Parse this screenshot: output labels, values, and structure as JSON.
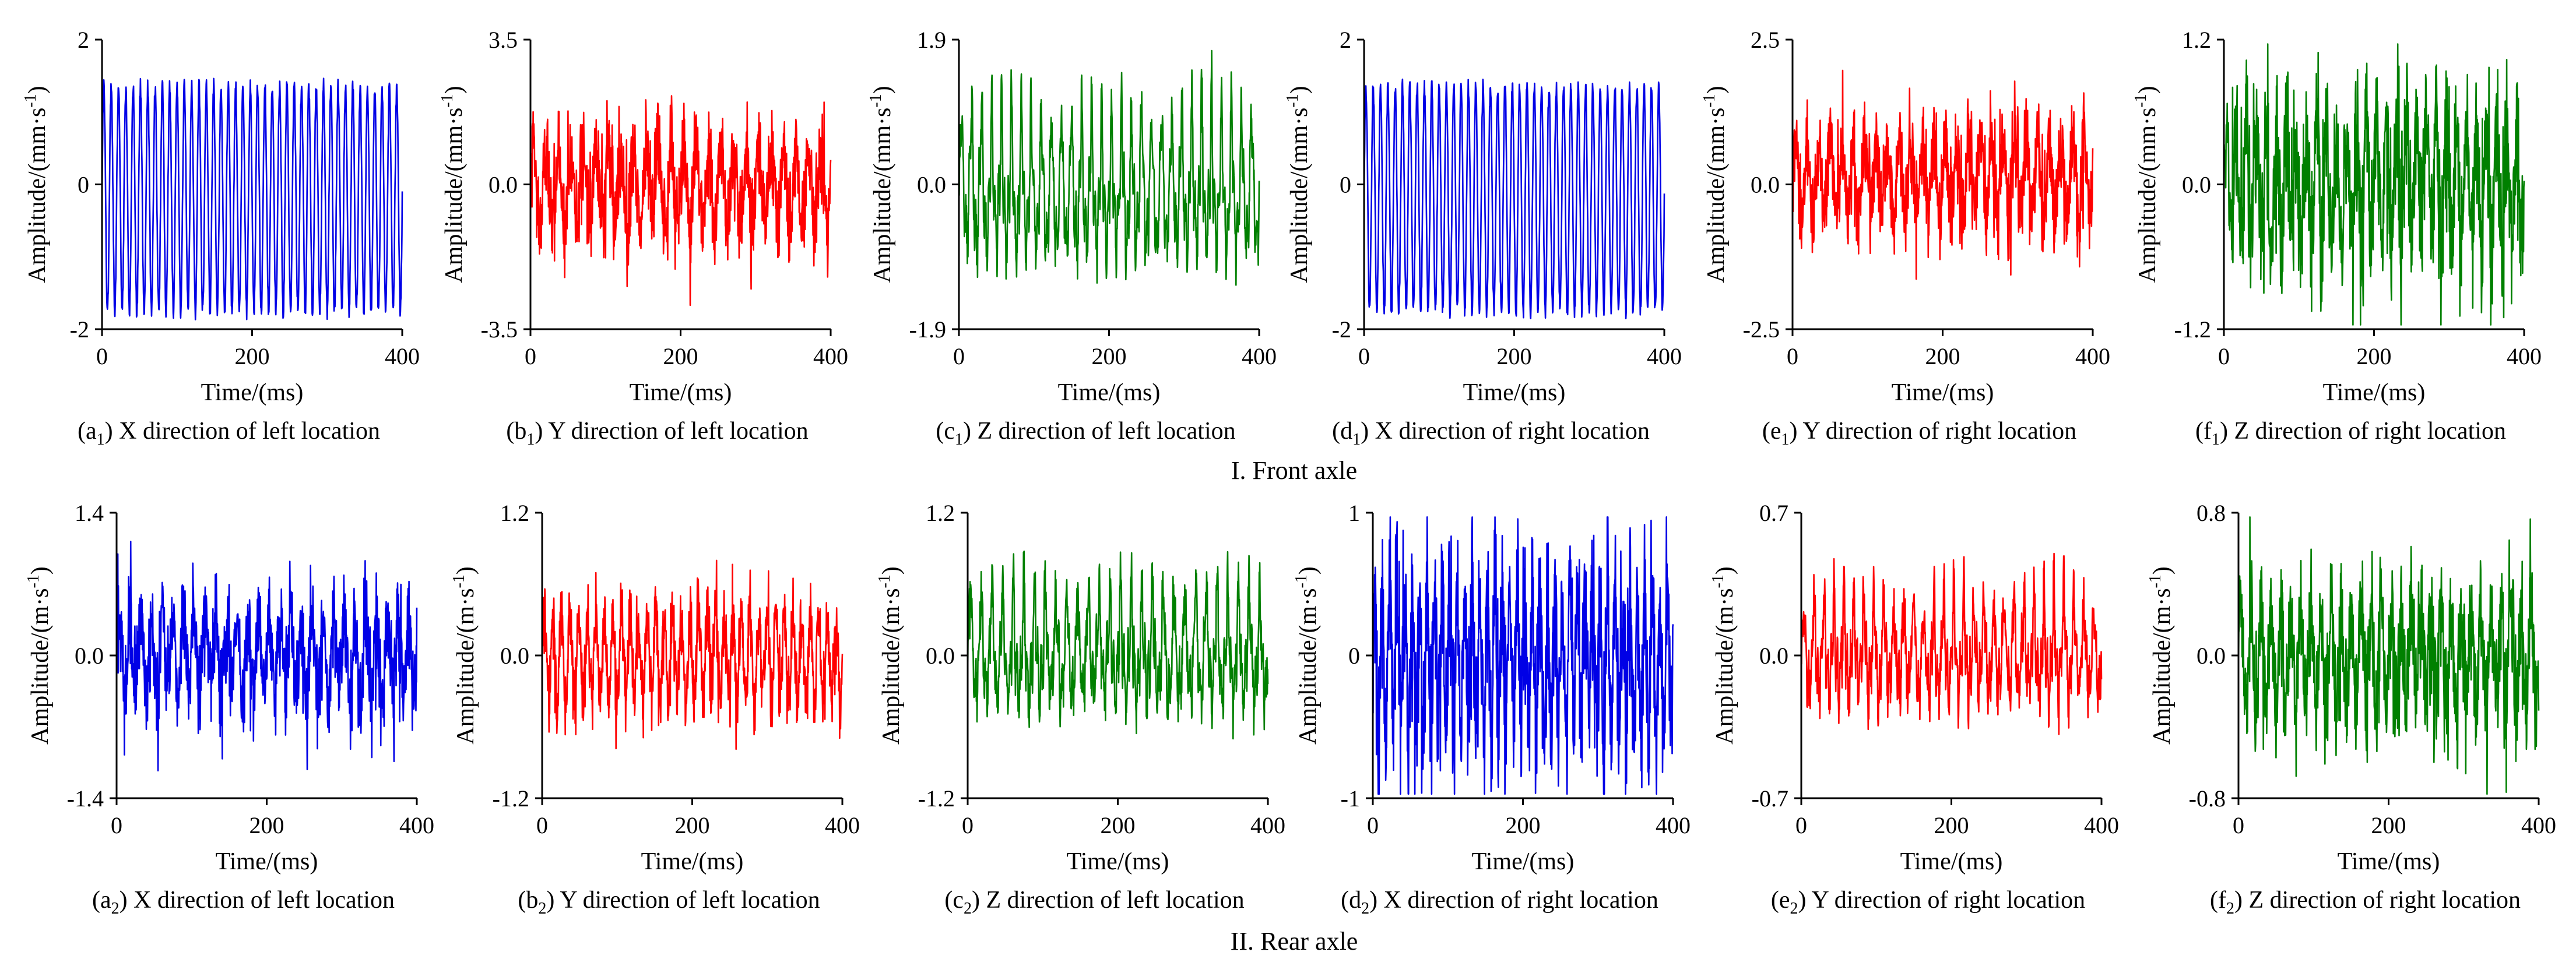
{
  "figure": {
    "row_captions": [
      "I. Front axle",
      "II. Rear axle"
    ]
  },
  "chart_data": [
    {
      "id": "a1",
      "type": "line",
      "panel_label": "a",
      "panel_sub": "1",
      "caption_text": "X direction of left location",
      "xlabel": "Time/(ms)",
      "ylabel": "Amplitude/(mm·s",
      "ylabel_sup": "-1",
      "ylabel_close": ")",
      "xlim": [
        0,
        400
      ],
      "ylim": [
        -2,
        2
      ],
      "xticks": [
        "0",
        "200",
        "400"
      ],
      "yticks": [
        "-2",
        "0",
        "2"
      ],
      "color": "#0000e6",
      "signal": {
        "style": "periodic",
        "cycles": 41,
        "amp": 1.55,
        "offset": -0.2,
        "noise": 0.12
      }
    },
    {
      "id": "b1",
      "type": "line",
      "panel_label": "b",
      "panel_sub": "1",
      "caption_text": "Y direction of left location",
      "xlabel": "Time/(ms)",
      "ylabel": "Amplitude/(mm·s",
      "ylabel_sup": "-1",
      "ylabel_close": ")",
      "xlim": [
        0,
        400
      ],
      "ylim": [
        -3.5,
        3.5
      ],
      "xticks": [
        "0",
        "200",
        "400"
      ],
      "yticks": [
        "-3.5",
        "0.0",
        "3.5"
      ],
      "color": "#ff0000",
      "signal": {
        "style": "noise",
        "cycles": 24,
        "amp": 0.9,
        "offset": 0,
        "noise": 0.85
      }
    },
    {
      "id": "c1",
      "type": "line",
      "panel_label": "c",
      "panel_sub": "1",
      "caption_text": "Z direction of left location",
      "xlabel": "Time/(ms)",
      "ylabel": "Amplitude/(mm·s",
      "ylabel_sup": "-1",
      "ylabel_close": ")",
      "xlim": [
        0,
        400
      ],
      "ylim": [
        -1.9,
        1.9
      ],
      "xticks": [
        "0",
        "200",
        "400"
      ],
      "yticks": [
        "-1.9",
        "0.0",
        "1.9"
      ],
      "color": "#008000",
      "signal": {
        "style": "spiky",
        "cycles": 30,
        "amp": 1.4,
        "offset": -0.1,
        "noise": 0.25
      }
    },
    {
      "id": "d1",
      "type": "line",
      "panel_label": "d",
      "panel_sub": "1",
      "caption_text": "X direction of right location",
      "xlabel": "Time/(ms)",
      "ylabel": "Amplitude/(mm·s",
      "ylabel_sup": "-1",
      "ylabel_close": ")",
      "xlim": [
        0,
        400
      ],
      "ylim": [
        -2,
        2
      ],
      "xticks": [
        "0",
        "200",
        "400"
      ],
      "yticks": [
        "-2",
        "0",
        "2"
      ],
      "color": "#0000e6",
      "signal": {
        "style": "periodic",
        "cycles": 41,
        "amp": 1.55,
        "offset": -0.2,
        "noise": 0.12
      }
    },
    {
      "id": "e1",
      "type": "line",
      "panel_label": "e",
      "panel_sub": "1",
      "caption_text": "Y direction of right location",
      "xlabel": "Time/(ms)",
      "ylabel": "Amplitude/(mm·s",
      "ylabel_sup": "-1",
      "ylabel_close": ")",
      "xlim": [
        0,
        400
      ],
      "ylim": [
        -2.5,
        2.5
      ],
      "xticks": [
        "0",
        "200",
        "400"
      ],
      "yticks": [
        "-2.5",
        "0.0",
        "2.5"
      ],
      "color": "#ff0000",
      "signal": {
        "style": "noise",
        "cycles": 26,
        "amp": 0.6,
        "offset": 0.1,
        "noise": 0.6
      }
    },
    {
      "id": "f1",
      "type": "line",
      "panel_label": "f",
      "panel_sub": "1",
      "caption_text": "Z direction of right location",
      "xlabel": "Time/(ms)",
      "ylabel": "Amplitude/(mm·s",
      "ylabel_sup": "-1",
      "ylabel_close": ")",
      "xlim": [
        0,
        400
      ],
      "ylim": [
        -1.2,
        1.2
      ],
      "xticks": [
        "0",
        "200",
        "400"
      ],
      "yticks": [
        "-1.2",
        "0.0",
        "1.2"
      ],
      "color": "#008000",
      "signal": {
        "style": "noise",
        "cycles": 30,
        "amp": 0.45,
        "offset": 0,
        "noise": 0.45
      }
    },
    {
      "id": "a2",
      "type": "line",
      "panel_label": "a",
      "panel_sub": "2",
      "caption_text": "X direction of left location",
      "xlabel": "Time/(ms)",
      "ylabel": "Amplitude/(m·s",
      "ylabel_sup": "-1",
      "ylabel_close": ")",
      "xlim": [
        0,
        400
      ],
      "ylim": [
        -1.4,
        1.4
      ],
      "xticks": [
        "0",
        "200",
        "400"
      ],
      "yticks": [
        "-1.4",
        "0.0",
        "1.4"
      ],
      "color": "#0000e6",
      "signal": {
        "style": "noise",
        "cycles": 28,
        "amp": 0.35,
        "offset": 0,
        "noise": 0.35
      }
    },
    {
      "id": "b2",
      "type": "line",
      "panel_label": "b",
      "panel_sub": "2",
      "caption_text": "Y direction of left location",
      "xlabel": "Time/(ms)",
      "ylabel": "Amplitude/(m·s",
      "ylabel_sup": "-1",
      "ylabel_close": ")",
      "xlim": [
        0,
        400
      ],
      "ylim": [
        -1.2,
        1.2
      ],
      "xticks": [
        "0",
        "200",
        "400"
      ],
      "yticks": [
        "-1.2",
        "0.0",
        "1.2"
      ],
      "color": "#ff0000",
      "signal": {
        "style": "noise",
        "cycles": 35,
        "amp": 0.35,
        "offset": 0,
        "noise": 0.22
      }
    },
    {
      "id": "c2",
      "type": "line",
      "panel_label": "c",
      "panel_sub": "2",
      "caption_text": "Z direction of left location",
      "xlabel": "Time/(ms)",
      "ylabel": "Amplitude/(m·s",
      "ylabel_sup": "-1",
      "ylabel_close": ")",
      "xlim": [
        0,
        400
      ],
      "ylim": [
        -1.2,
        1.2
      ],
      "xticks": [
        "0",
        "200",
        "400"
      ],
      "yticks": [
        "-1.2",
        "0.0",
        "1.2"
      ],
      "color": "#008000",
      "signal": {
        "style": "spiky",
        "cycles": 28,
        "amp": 0.7,
        "offset": 0,
        "noise": 0.2
      }
    },
    {
      "id": "d2",
      "type": "line",
      "panel_label": "d",
      "panel_sub": "2",
      "caption_text": "X direction of right location",
      "xlabel": "Time/(ms)",
      "ylabel": "Amplitude/(m·s",
      "ylabel_sup": "-1",
      "ylabel_close": ")",
      "xlim": [
        0,
        400
      ],
      "ylim": [
        -1,
        1
      ],
      "xticks": [
        "0",
        "200",
        "400"
      ],
      "yticks": [
        "-1",
        "0",
        "1"
      ],
      "color": "#0000e6",
      "signal": {
        "style": "noise",
        "cycles": 40,
        "amp": 0.45,
        "offset": -0.05,
        "noise": 0.4
      }
    },
    {
      "id": "e2",
      "type": "line",
      "panel_label": "e",
      "panel_sub": "2",
      "caption_text": "Y direction of right location",
      "xlabel": "Time/(ms)",
      "ylabel": "Amplitude/(m·s",
      "ylabel_sup": "-1",
      "ylabel_close": ")",
      "xlim": [
        0,
        400
      ],
      "ylim": [
        -0.7,
        0.7
      ],
      "xticks": [
        "0",
        "200",
        "400"
      ],
      "yticks": [
        "-0.7",
        "0.0",
        "0.7"
      ],
      "color": "#ff0000",
      "signal": {
        "style": "spiky",
        "cycles": 30,
        "amp": 0.35,
        "offset": 0,
        "noise": 0.12
      }
    },
    {
      "id": "f2",
      "type": "line",
      "panel_label": "f",
      "panel_sub": "2",
      "caption_text": "Z direction of right location",
      "xlabel": "Time/(ms)",
      "ylabel": "Amplitude/(m·s",
      "ylabel_sup": "-1",
      "ylabel_close": ")",
      "xlim": [
        0,
        400
      ],
      "ylim": [
        -0.8,
        0.8
      ],
      "xticks": [
        "0",
        "200",
        "400"
      ],
      "yticks": [
        "-0.8",
        "0.0",
        "0.8"
      ],
      "color": "#008000",
      "signal": {
        "style": "noise",
        "cycles": 30,
        "amp": 0.25,
        "offset": 0,
        "noise": 0.25
      }
    }
  ]
}
